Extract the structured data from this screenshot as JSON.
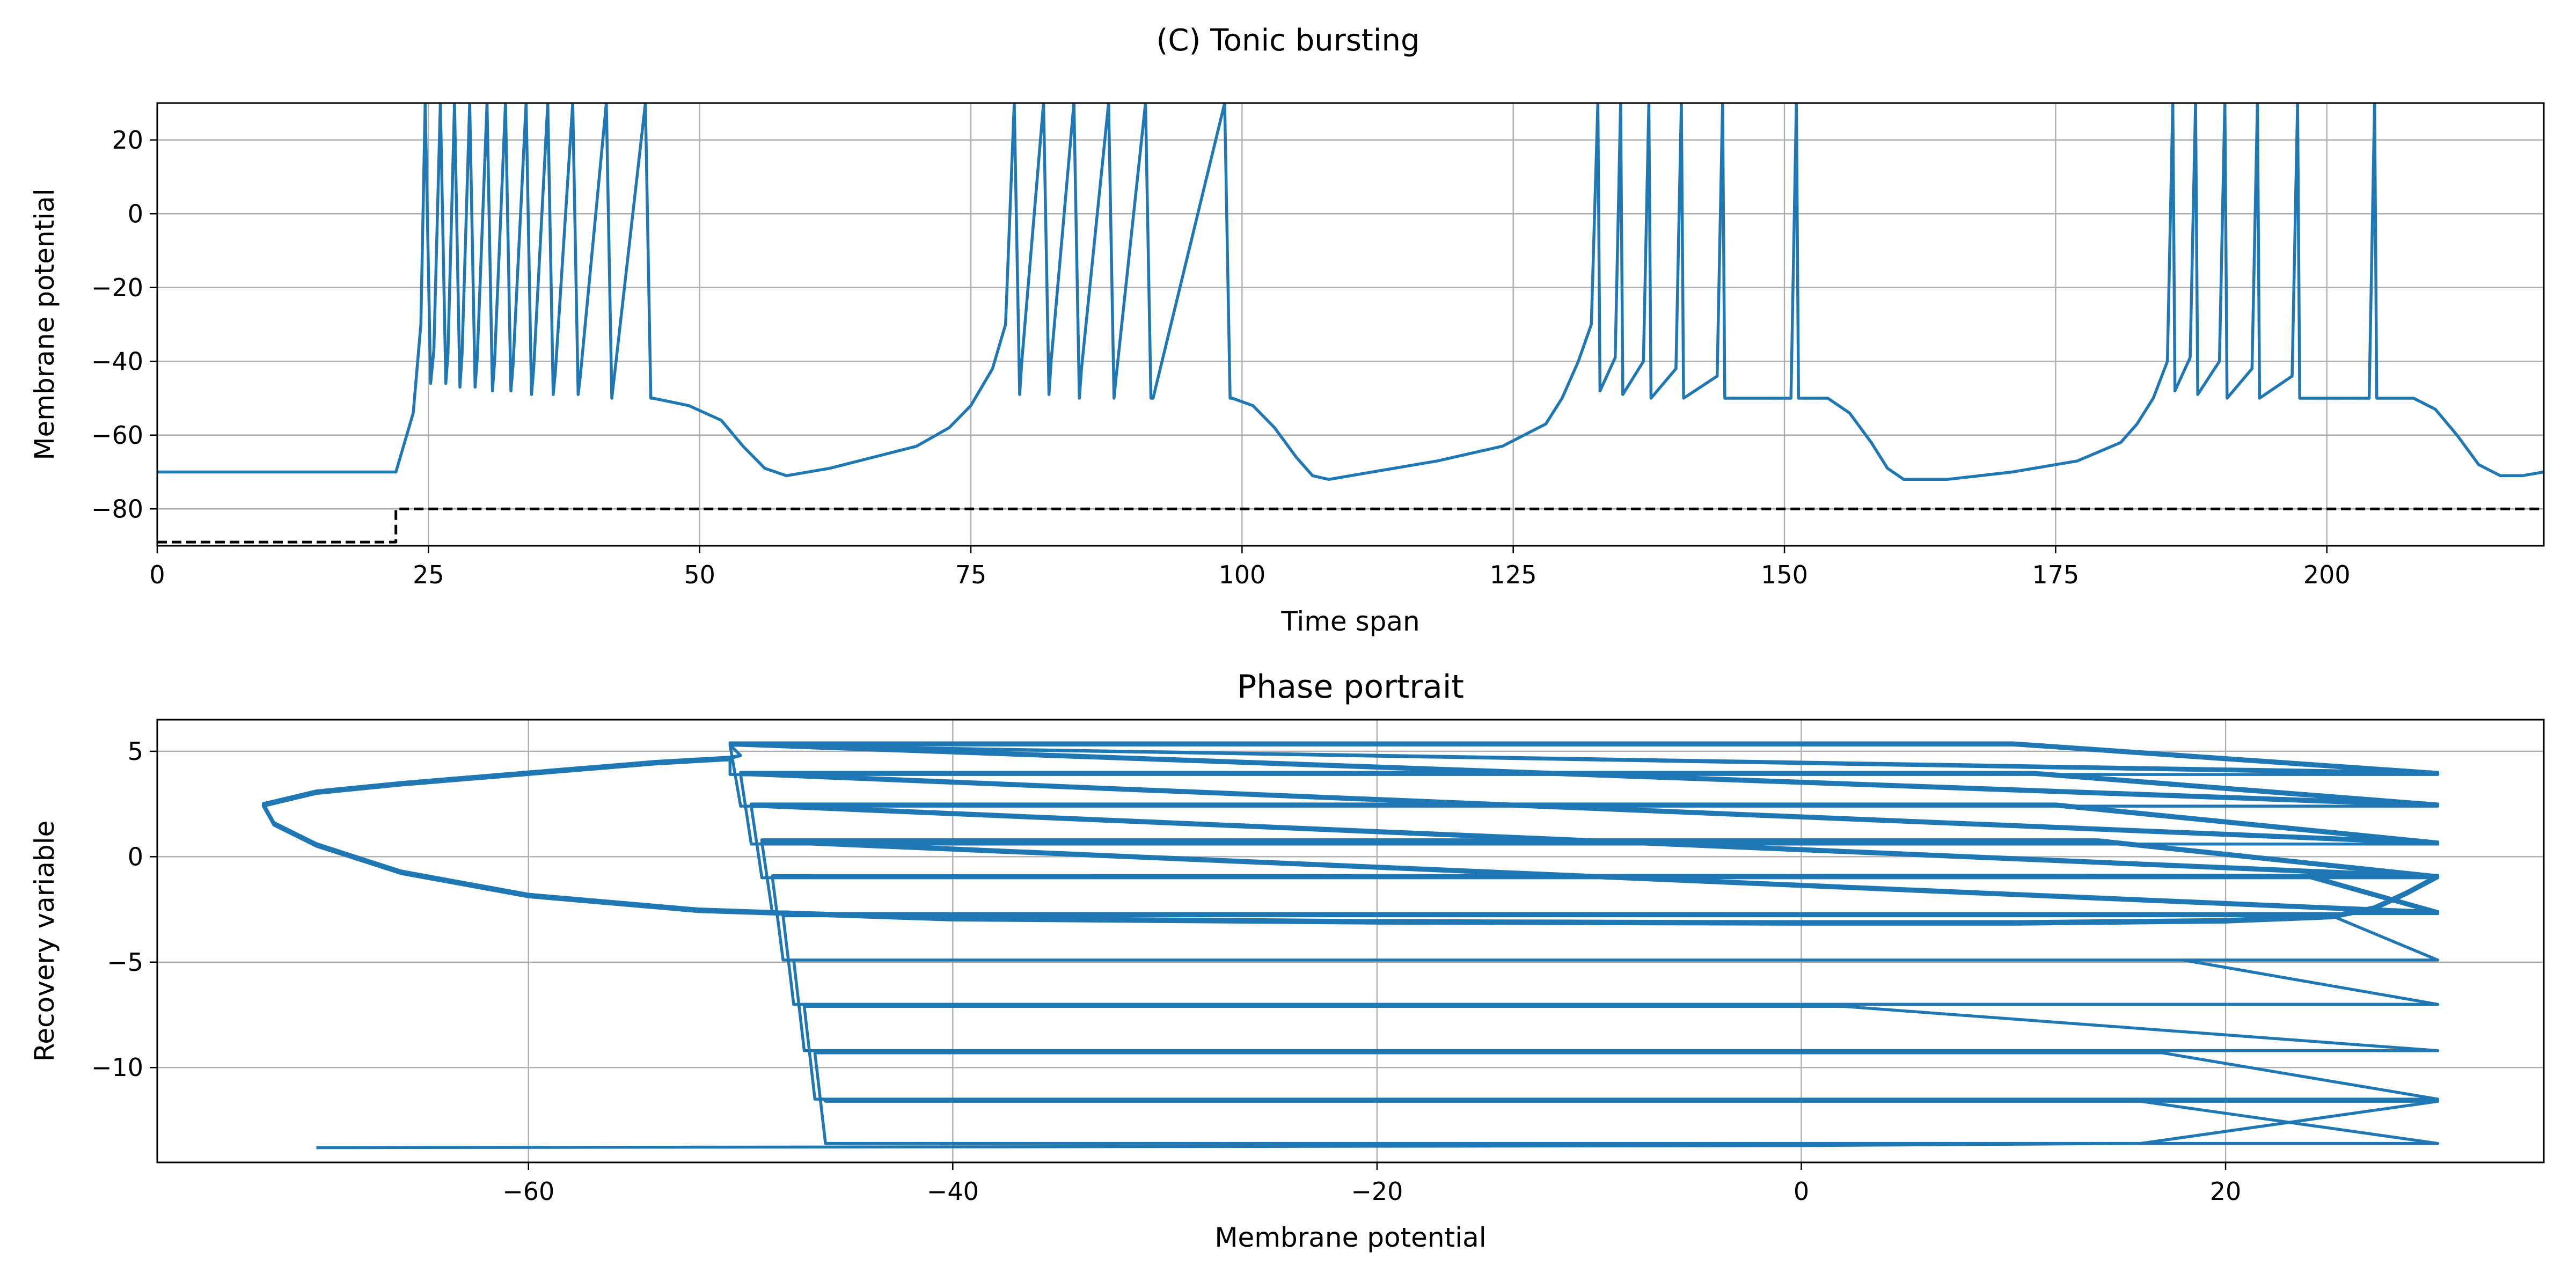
{
  "figure": {
    "suptitle": "(C) Tonic bursting"
  },
  "chart_data": [
    {
      "type": "line",
      "title": "",
      "xlabel": "Time span",
      "ylabel": "Membrane potential",
      "xlim": [
        0,
        220
      ],
      "ylim": [
        -90,
        30
      ],
      "xticks": [
        0,
        25,
        50,
        75,
        100,
        125,
        150,
        175,
        200
      ],
      "yticks": [
        -80,
        -60,
        -40,
        -20,
        0,
        20
      ],
      "grid": true,
      "legend": "none",
      "series": [
        {
          "style": "solid",
          "color": "#1f77b4",
          "x": [
            0,
            22,
            23.6,
            24.3,
            24.7,
            25.2,
            25.5,
            26.1,
            26.6,
            26.8,
            27.4,
            27.9,
            28.1,
            28.8,
            29.3,
            29.5,
            30.4,
            30.9,
            31.1,
            32.1,
            32.6,
            32.8,
            34.0,
            34.5,
            34.7,
            36.0,
            36.5,
            36.7,
            38.3,
            38.8,
            39.0,
            41.4,
            41.9,
            42.1,
            45.0,
            45.5,
            45.7,
            49,
            52,
            54,
            56,
            58,
            62,
            66,
            70,
            73,
            75,
            77,
            78.2,
            79.0,
            79.5,
            79.7,
            81.7,
            82.2,
            82.4,
            84.5,
            85.0,
            85.2,
            87.7,
            88.2,
            88.4,
            91.1,
            91.6,
            91.8,
            98.4,
            98.9,
            99.1,
            101,
            103,
            105,
            106.5,
            108,
            112,
            118,
            124,
            128,
            129.5,
            131,
            132.2,
            132.8,
            133.0,
            134.4,
            134.9,
            135.1,
            137.0,
            137.5,
            137.7,
            140.0,
            140.5,
            140.7,
            143.8,
            144.3,
            144.5,
            150.6,
            151.1,
            151.3,
            154,
            156,
            158,
            159.5,
            161,
            165,
            171,
            177,
            181,
            182.5,
            184,
            185.3,
            185.8,
            186.0,
            187.4,
            187.9,
            188.1,
            190.1,
            190.6,
            190.8,
            193.1,
            193.6,
            193.8,
            196.8,
            197.3,
            197.5,
            203.9,
            204.4,
            204.6,
            208,
            210,
            212,
            214,
            216,
            218,
            220
          ],
          "y": [
            -70,
            -70,
            -54,
            -30,
            30,
            -46,
            -37,
            30,
            -46,
            -38,
            30,
            -47,
            -38,
            30,
            -47,
            -39,
            30,
            -48,
            -40,
            30,
            -48,
            -41,
            30,
            -49,
            -42,
            30,
            -49,
            -43,
            30,
            -49,
            -44,
            30,
            -50,
            -45,
            30,
            -50,
            -50,
            -52,
            -56,
            -63,
            -69,
            -71,
            -69,
            -66,
            -63,
            -58,
            -52,
            -42,
            -30,
            30,
            -49,
            -40,
            30,
            -49,
            -40,
            30,
            -50,
            -42,
            30,
            -50,
            -44,
            30,
            -50,
            -50,
            30,
            -50,
            -50,
            -52,
            -58,
            -66,
            -71,
            -72,
            -70,
            -67,
            -63,
            -57,
            -50,
            -40,
            -30,
            30,
            -48,
            -39,
            30,
            -49,
            -40,
            30,
            -50,
            -42,
            30,
            -50,
            -44,
            30,
            -50,
            -50,
            30,
            -50,
            -50,
            -54,
            -62,
            -69,
            -72,
            -72,
            -70,
            -67,
            -62,
            -57,
            -50,
            -40,
            30,
            -48,
            -39,
            30,
            -49,
            -40,
            30,
            -50,
            -42,
            30,
            -50,
            -44,
            30,
            -50,
            -50,
            30,
            -50,
            -50,
            -53,
            -60,
            -68,
            -71,
            -71,
            -70
          ]
        },
        {
          "style": "dashed",
          "color": "#000000",
          "x": [
            0,
            22,
            22,
            220
          ],
          "y": [
            -89,
            -89,
            -80,
            -80
          ]
        }
      ]
    },
    {
      "type": "line",
      "title": "Phase portrait",
      "xlabel": "Membrane potential",
      "ylabel": "Recovery variable",
      "xlim": [
        -77.5,
        35
      ],
      "ylim": [
        -14.5,
        6.5
      ],
      "xticks": [
        -60,
        -40,
        -20,
        0,
        20
      ],
      "yticks": [
        -10,
        -5,
        0,
        5
      ],
      "grid": true,
      "legend": "none",
      "series": [
        {
          "style": "solid",
          "color": "#1f77b4",
          "spike_peak_x": 30,
          "resets": [
            {
              "y": -11.6,
              "start_x": -46.0,
              "turn_x": 16.0,
              "peak_y": -13.6
            },
            {
              "y": -9.3,
              "start_x": -46.5,
              "turn_x": 17.0,
              "peak_y": -11.5
            },
            {
              "y": -7.1,
              "start_x": -47.0,
              "turn_x": 2.0,
              "peak_y": -9.2
            },
            {
              "y": -4.9,
              "start_x": -47.5,
              "turn_x": 18.0,
              "peak_y": -7.0
            },
            {
              "y": -2.8,
              "start_x": -48.0,
              "turn_x": 25.0,
              "peak_y": -4.9
            },
            {
              "y": -1.0,
              "start_x": -48.5,
              "turn_x": 24.0,
              "peak_y": -2.7
            },
            {
              "y": 0.7,
              "start_x": -49.0,
              "turn_x": 14.0,
              "peak_y": -1.0
            },
            {
              "y": 2.4,
              "start_x": -49.5,
              "turn_x": 12.0,
              "peak_y": 0.6
            },
            {
              "y": 3.9,
              "start_x": -50.0,
              "turn_x": 11.0,
              "peak_y": 2.4
            },
            {
              "y": 5.3,
              "start_x": -50.5,
              "turn_x": 10.0,
              "peak_y": 3.9
            }
          ],
          "loop_x": [
            -50.5,
            -54,
            -60,
            -66,
            -70,
            -72.5,
            -72.0,
            -70.0,
            -66,
            -60,
            -52,
            -40,
            -20,
            0,
            10,
            20,
            25,
            27,
            28.5,
            30
          ],
          "loop_y": [
            4.6,
            4.4,
            3.9,
            3.4,
            3.0,
            2.4,
            1.5,
            0.5,
            -0.8,
            -1.9,
            -2.6,
            -3.0,
            -3.15,
            -3.2,
            -3.2,
            -3.1,
            -2.9,
            -2.5,
            -1.8,
            -1.0
          ],
          "initial_x": [
            -70,
            -30,
            0,
            16,
            30,
            -46
          ],
          "initial_y": [
            -13.8,
            -13.75,
            -13.7,
            -13.6,
            -11.6,
            -11.6
          ]
        }
      ]
    }
  ]
}
